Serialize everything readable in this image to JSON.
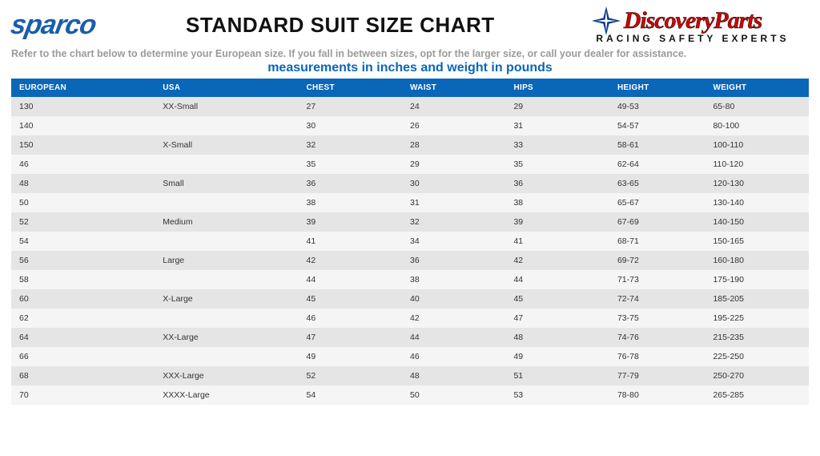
{
  "header": {
    "sparco_text": "sparco",
    "title": "STANDARD SUIT SIZE CHART",
    "discovery_name": "DiscoveryParts",
    "discovery_tagline": "RACING SAFETY EXPERTS"
  },
  "instruction": "Refer to the chart below to determine your European size. If you fall in between sizes, opt for the larger size, or call your dealer for assistance.",
  "subtitle": "measurements in inches and weight in pounds",
  "table": {
    "columns": [
      "EUROPEAN",
      "USA",
      "CHEST",
      "WAIST",
      "HIPS",
      "HEIGHT",
      "WEIGHT"
    ],
    "rows": [
      [
        "130",
        "XX-Small",
        "27",
        "24",
        "29",
        "49-53",
        "65-80"
      ],
      [
        "140",
        "",
        "30",
        "26",
        "31",
        "54-57",
        "80-100"
      ],
      [
        "150",
        "X-Small",
        "32",
        "28",
        "33",
        "58-61",
        "100-110"
      ],
      [
        "46",
        "",
        "35",
        "29",
        "35",
        "62-64",
        "110-120"
      ],
      [
        "48",
        "Small",
        "36",
        "30",
        "36",
        "63-65",
        "120-130"
      ],
      [
        "50",
        "",
        "38",
        "31",
        "38",
        "65-67",
        "130-140"
      ],
      [
        "52",
        "Medium",
        "39",
        "32",
        "39",
        "67-69",
        "140-150"
      ],
      [
        "54",
        "",
        "41",
        "34",
        "41",
        "68-71",
        "150-165"
      ],
      [
        "56",
        "Large",
        "42",
        "36",
        "42",
        "69-72",
        "160-180"
      ],
      [
        "58",
        "",
        "44",
        "38",
        "44",
        "71-73",
        "175-190"
      ],
      [
        "60",
        "X-Large",
        "45",
        "40",
        "45",
        "72-74",
        "185-205"
      ],
      [
        "62",
        "",
        "46",
        "42",
        "47",
        "73-75",
        "195-225"
      ],
      [
        "64",
        "XX-Large",
        "47",
        "44",
        "48",
        "74-76",
        "215-235"
      ],
      [
        "66",
        "",
        "49",
        "46",
        "49",
        "76-78",
        "225-250"
      ],
      [
        "68",
        "XXX-Large",
        "52",
        "48",
        "51",
        "77-79",
        "250-270"
      ],
      [
        "70",
        "XXXX-Large",
        "54",
        "50",
        "53",
        "78-80",
        "265-285"
      ]
    ],
    "header_bg": "#0a66b8",
    "header_fg": "#ffffff",
    "row_odd_bg": "#e5e5e5",
    "row_even_bg": "#f5f5f5",
    "cell_fontsize": 10.5,
    "header_fontsize": 10
  },
  "colors": {
    "sparco_blue": "#1a5dab",
    "dp_red": "#d40000",
    "dp_star": "#0a3a8a",
    "subtitle_blue": "#0a66b8",
    "instruction_gray": "#9a9a9a"
  }
}
